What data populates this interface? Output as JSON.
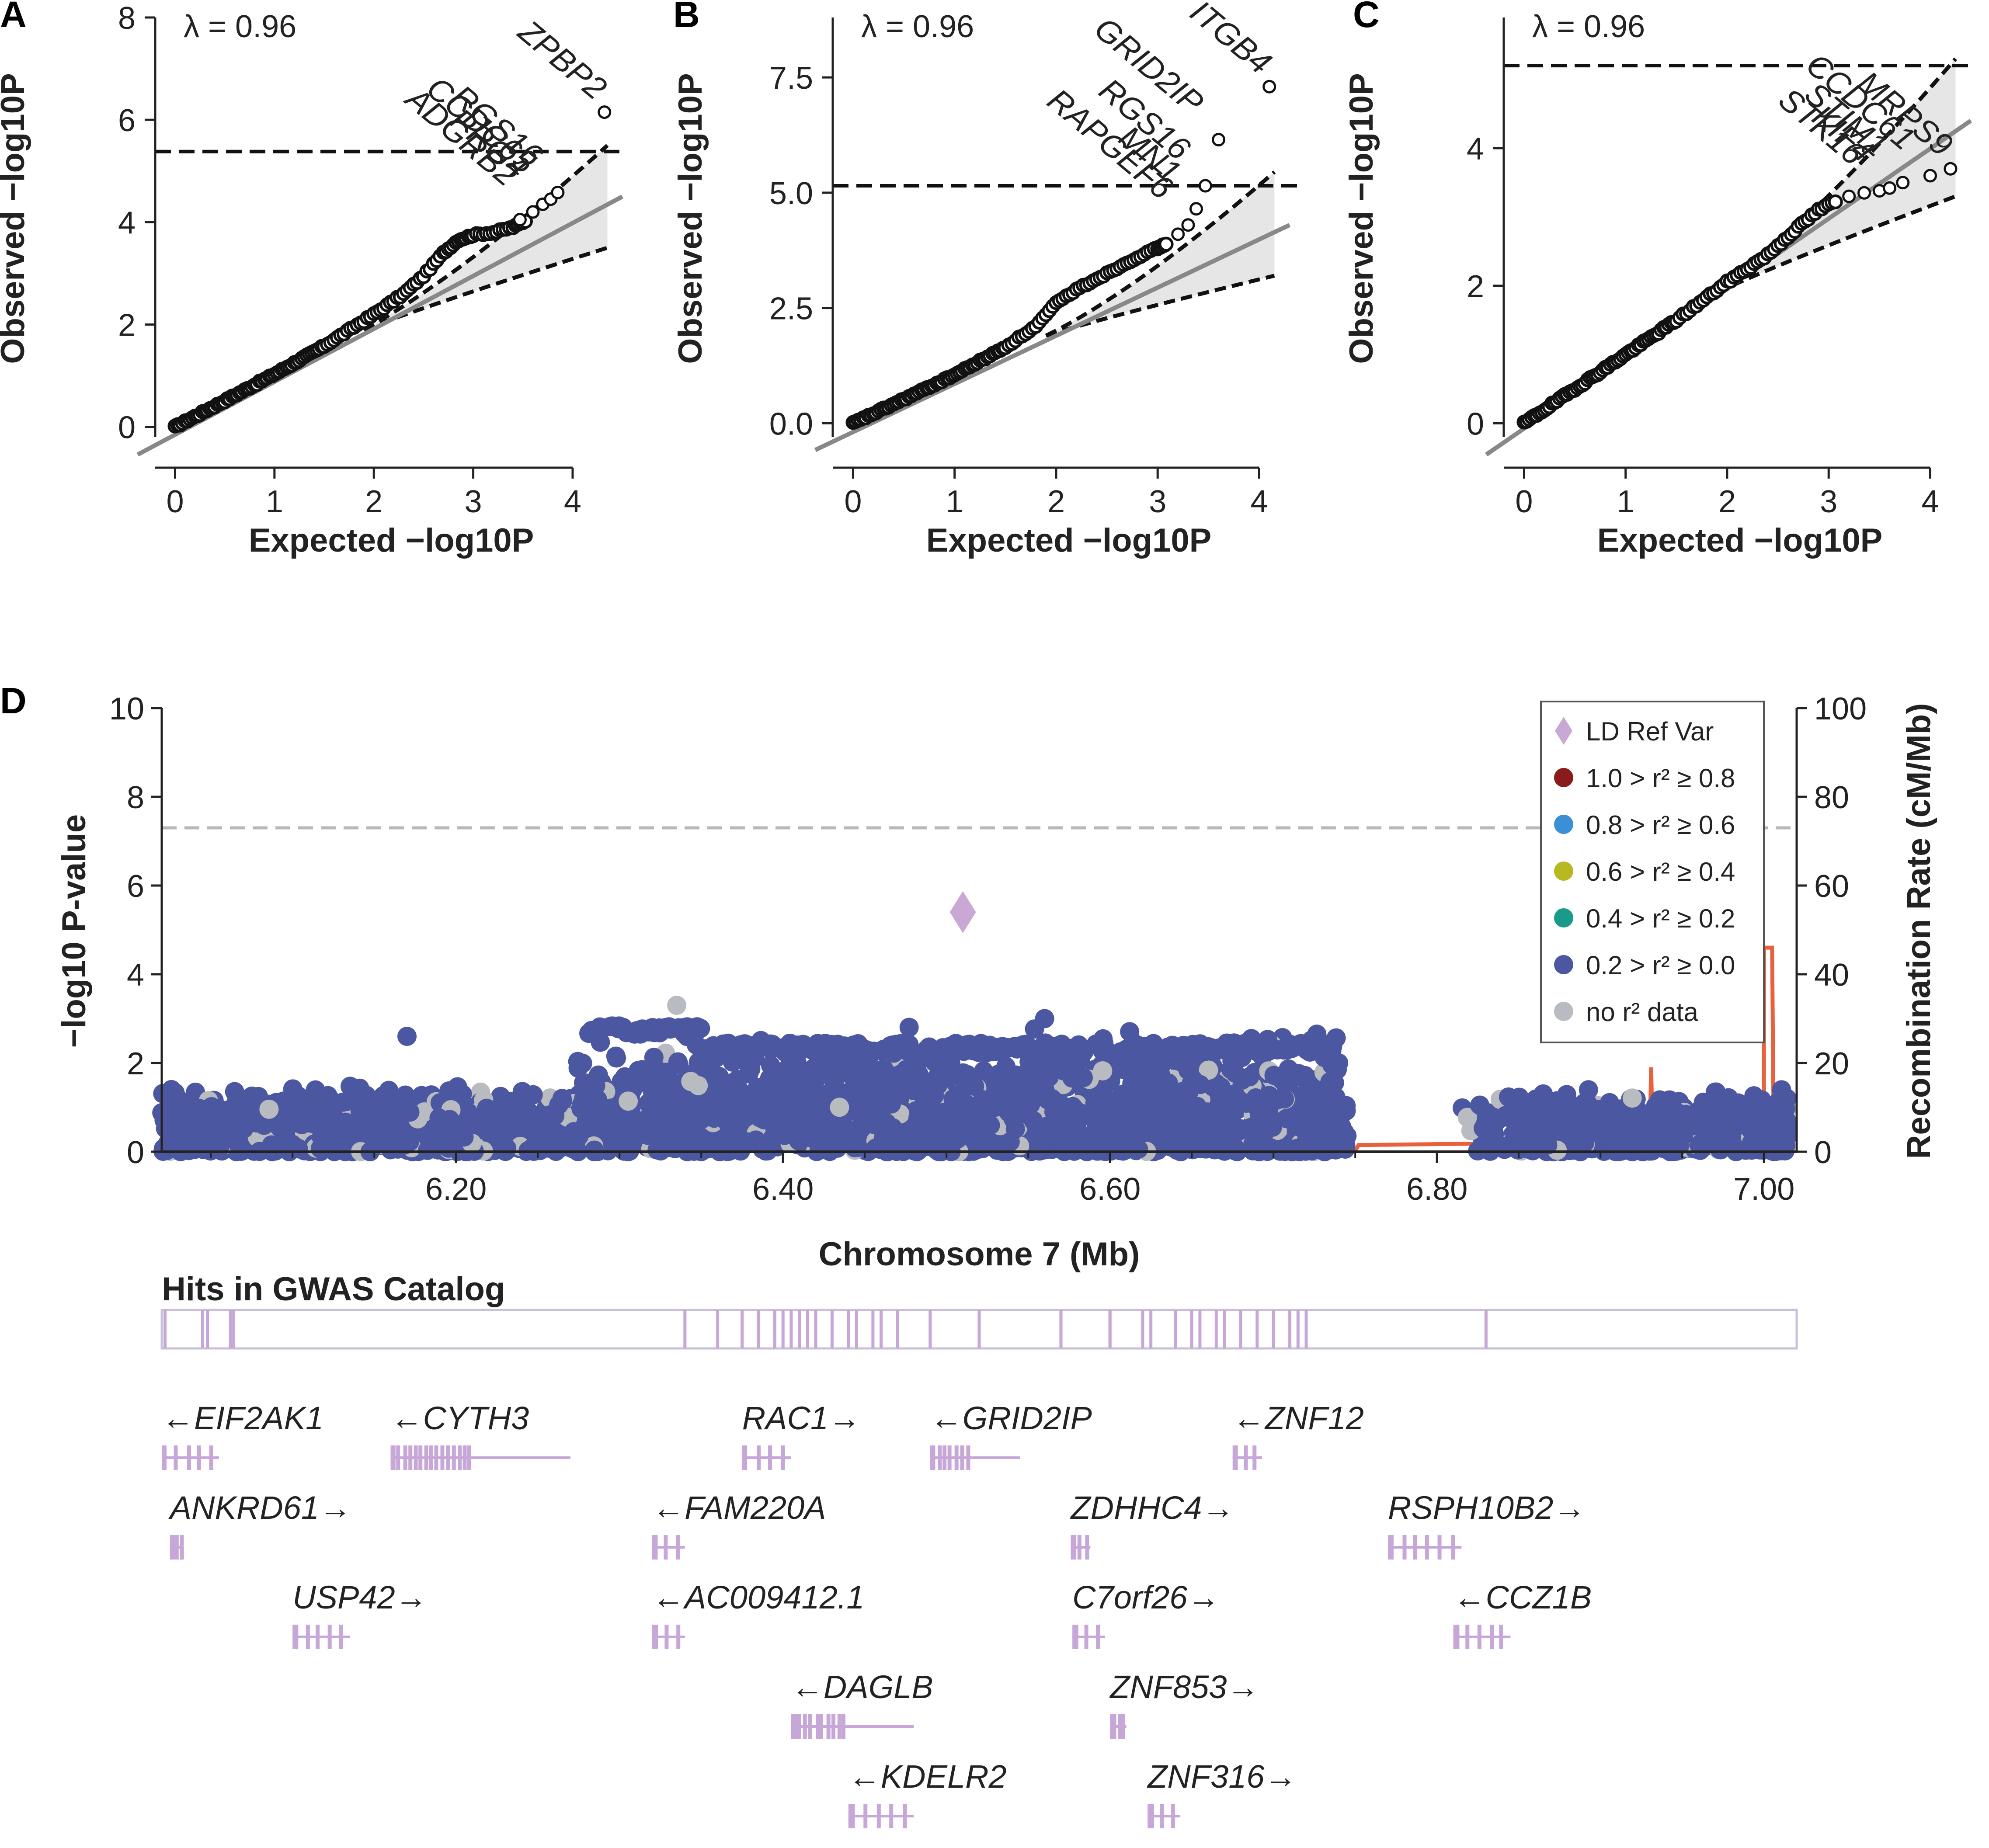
{
  "chart_data": [
    {
      "panel": "A",
      "type": "scatter",
      "title": "",
      "lambda_label": "λ = 0.96",
      "xlabel": "Expected −log10P",
      "ylabel": "Observed −log10P",
      "xlim": [
        -0.2,
        4.55
      ],
      "ylim": [
        -0.2,
        8
      ],
      "xticks": [
        0,
        1,
        2,
        3,
        4
      ],
      "yticks": [
        0,
        2,
        4,
        6,
        8
      ],
      "ytick_labels": [
        "0",
        "2",
        "4",
        "6",
        "8"
      ],
      "significance_line": 5.38,
      "max_expected": 4.35,
      "ci_upper_end": 5.5,
      "ci_lower_end": 3.5,
      "curve": [
        [
          0,
          0
        ],
        [
          0.5,
          0.51
        ],
        [
          1,
          1.03
        ],
        [
          1.5,
          1.58
        ],
        [
          2,
          2.2
        ],
        [
          2.3,
          2.6
        ],
        [
          2.5,
          2.95
        ],
        [
          2.7,
          3.4
        ],
        [
          2.85,
          3.65
        ],
        [
          3.0,
          3.75
        ],
        [
          3.2,
          3.8
        ],
        [
          3.4,
          3.9
        ],
        [
          3.55,
          4.05
        ]
      ],
      "top_points": [
        [
          3.47,
          4.05
        ],
        [
          3.6,
          4.2
        ],
        [
          3.7,
          4.35
        ],
        [
          3.78,
          4.45
        ],
        [
          3.85,
          4.58
        ],
        [
          4.32,
          6.15
        ]
      ],
      "labels": [
        "ZPBP2",
        "RGS16",
        "CCDC65",
        "PRG4",
        "ADGRB2"
      ]
    },
    {
      "panel": "B",
      "type": "scatter",
      "title": "",
      "lambda_label": "λ = 0.96",
      "xlabel": "Expected −log10P",
      "ylabel": "Observed −log10P",
      "xlim": [
        -0.2,
        4.45
      ],
      "ylim": [
        -0.3,
        8.8
      ],
      "xticks": [
        0,
        1,
        2,
        3,
        4
      ],
      "yticks": [
        0,
        2.5,
        5,
        7.5
      ],
      "ytick_labels": [
        "0.0",
        "2.5",
        "5.0",
        "7.5"
      ],
      "significance_line": 5.15,
      "max_expected": 4.15,
      "ci_upper_end": 5.45,
      "ci_lower_end": 3.2,
      "curve": [
        [
          0,
          0
        ],
        [
          0.5,
          0.52
        ],
        [
          1,
          1.05
        ],
        [
          1.5,
          1.65
        ],
        [
          1.8,
          2.1
        ],
        [
          2,
          2.6
        ],
        [
          2.2,
          2.9
        ],
        [
          2.5,
          3.25
        ],
        [
          2.8,
          3.6
        ],
        [
          3.0,
          3.8
        ],
        [
          3.1,
          3.9
        ]
      ],
      "top_points": [
        [
          3.2,
          4.1
        ],
        [
          3.3,
          4.3
        ],
        [
          3.38,
          4.65
        ],
        [
          3.47,
          5.15
        ],
        [
          3.6,
          6.15
        ],
        [
          4.1,
          7.3
        ]
      ],
      "labels": [
        "ITGB4",
        "GRID2IP",
        "RGS16",
        "MN1",
        "RAPGEF6"
      ]
    },
    {
      "panel": "C",
      "type": "scatter",
      "title": "",
      "lambda_label": "λ = 0.96",
      "xlabel": "Expected −log10P",
      "ylabel": "Observed −log10P",
      "xlim": [
        -0.2,
        4.45
      ],
      "ylim": [
        -0.2,
        5.9
      ],
      "xticks": [
        0,
        1,
        2,
        3,
        4
      ],
      "yticks": [
        0,
        2,
        4
      ],
      "ytick_labels": [
        "0",
        "2",
        "4"
      ],
      "significance_line": 5.2,
      "max_expected": 4.25,
      "ci_upper_end": 5.3,
      "ci_lower_end": 3.3,
      "curve": [
        [
          0,
          0
        ],
        [
          0.5,
          0.5
        ],
        [
          1,
          1.0
        ],
        [
          1.5,
          1.5
        ],
        [
          2,
          2.05
        ],
        [
          2.4,
          2.45
        ],
        [
          2.7,
          2.85
        ],
        [
          2.9,
          3.1
        ],
        [
          3.1,
          3.25
        ]
      ],
      "top_points": [
        [
          3.2,
          3.3
        ],
        [
          3.35,
          3.35
        ],
        [
          3.5,
          3.38
        ],
        [
          3.6,
          3.42
        ],
        [
          3.73,
          3.5
        ],
        [
          4.0,
          3.6
        ],
        [
          4.2,
          3.7
        ]
      ],
      "labels": [
        "MRPS9",
        "CCDC61",
        "STIM1",
        "KIF4",
        "STK16"
      ]
    },
    {
      "panel": "D",
      "type": "scatter",
      "title": "",
      "xlabel": "Chromosome 7 (Mb)",
      "ylabel": "−log10 P-value",
      "y2label": "Recombination Rate (cM/Mb)",
      "xlim": [
        6.02,
        7.02
      ],
      "ylim": [
        0,
        10
      ],
      "y2lim": [
        0,
        100
      ],
      "xticks": [
        6.2,
        6.4,
        6.6,
        6.8,
        7.0
      ],
      "xtick_labels": [
        "6.20",
        "6.40",
        "6.60",
        "6.80",
        "7.00"
      ],
      "yticks": [
        0,
        2,
        4,
        6,
        8,
        10
      ],
      "y2ticks": [
        0,
        20,
        40,
        60,
        80,
        100
      ],
      "significance_line": 7.3,
      "lead_variant": {
        "x": 6.51,
        "y": 5.4
      },
      "recombination": [
        [
          6.02,
          0.2
        ],
        [
          6.33,
          0.3
        ],
        [
          6.332,
          2
        ],
        [
          6.334,
          0.3
        ],
        [
          6.75,
          0.2
        ],
        [
          6.752,
          1.5
        ],
        [
          6.82,
          1.8
        ],
        [
          6.93,
          1.8
        ],
        [
          6.931,
          19
        ],
        [
          6.932,
          1.8
        ],
        [
          7.0,
          1.8
        ],
        [
          7.0,
          46
        ],
        [
          7.005,
          46
        ],
        [
          7.006,
          2
        ]
      ],
      "legend": [
        {
          "label": "LD Ref Var",
          "color": "#c9a8d6",
          "shape": "diamond"
        },
        {
          "label": "1.0 > r² ≥ 0.8",
          "color": "#8b1a1a",
          "shape": "circle"
        },
        {
          "label": "0.8 > r² ≥ 0.6",
          "color": "#3a8fd6",
          "shape": "circle"
        },
        {
          "label": "0.6 > r² ≥ 0.4",
          "color": "#b8b820",
          "shape": "circle"
        },
        {
          "label": "0.4 > r² ≥ 0.2",
          "color": "#1a9a8a",
          "shape": "circle"
        },
        {
          "label": "0.2 > r² ≥ 0.0",
          "color": "#4b57a0",
          "shape": "circle"
        },
        {
          "label": "no r² data",
          "color": "#b8bcc0",
          "shape": "circle"
        }
      ],
      "gwas_catalog_title": "Hits in GWAS Catalog",
      "gwas_hits": [
        6.022,
        6.045,
        6.048,
        6.062,
        6.064,
        6.34,
        6.36,
        6.375,
        6.385,
        6.395,
        6.4,
        6.405,
        6.41,
        6.415,
        6.42,
        6.43,
        6.44,
        6.445,
        6.455,
        6.46,
        6.47,
        6.49,
        6.52,
        6.57,
        6.6,
        6.6,
        6.62,
        6.625,
        6.64,
        6.65,
        6.655,
        6.665,
        6.67,
        6.68,
        6.69,
        6.7,
        6.71,
        6.715,
        6.72,
        6.83
      ],
      "genes": [
        {
          "name": "EIF2AK1",
          "label": "←EIF2AK1",
          "start": 6.02,
          "end": 6.055,
          "row": 0
        },
        {
          "name": "CYTH3",
          "label": "←CYTH3",
          "start": 6.16,
          "end": 6.27,
          "row": 0
        },
        {
          "name": "RAC1",
          "label": "RAC1→",
          "start": 6.375,
          "end": 6.405,
          "row": 0
        },
        {
          "name": "GRID2IP",
          "label": "←GRID2IP",
          "start": 6.49,
          "end": 6.545,
          "row": 0
        },
        {
          "name": "ZNF12",
          "label": "←ZNF12",
          "start": 6.675,
          "end": 6.693,
          "row": 0
        },
        {
          "name": "ANKRD61",
          "label": "ANKRD61→",
          "start": 6.025,
          "end": 6.032,
          "row": 1
        },
        {
          "name": "FAM220A",
          "label": "←FAM220A",
          "start": 6.32,
          "end": 6.34,
          "row": 1
        },
        {
          "name": "ZDHHC4",
          "label": "ZDHHC4→",
          "start": 6.576,
          "end": 6.588,
          "row": 1
        },
        {
          "name": "RSPH10B2",
          "label": "RSPH10B2→",
          "start": 6.77,
          "end": 6.815,
          "row": 1
        },
        {
          "name": "USP42",
          "label": "USP42→",
          "start": 6.1,
          "end": 6.135,
          "row": 2
        },
        {
          "name": "AC009412.1",
          "label": "←AC009412.1",
          "start": 6.32,
          "end": 6.34,
          "row": 2
        },
        {
          "name": "C7orf26",
          "label": "C7orf26→",
          "start": 6.577,
          "end": 6.597,
          "row": 2
        },
        {
          "name": "CCZ1B",
          "label": "←CCZ1B",
          "start": 6.81,
          "end": 6.845,
          "row": 2
        },
        {
          "name": "DAGLB",
          "label": "←DAGLB",
          "start": 6.405,
          "end": 6.48,
          "row": 3
        },
        {
          "name": "ZNF853",
          "label": "ZNF853→",
          "start": 6.6,
          "end": 6.61,
          "row": 3
        },
        {
          "name": "KDELR2",
          "label": "←KDELR2",
          "start": 6.44,
          "end": 6.48,
          "row": 4
        },
        {
          "name": "ZNF316",
          "label": "ZNF316→",
          "start": 6.623,
          "end": 6.643,
          "row": 4
        }
      ]
    }
  ]
}
